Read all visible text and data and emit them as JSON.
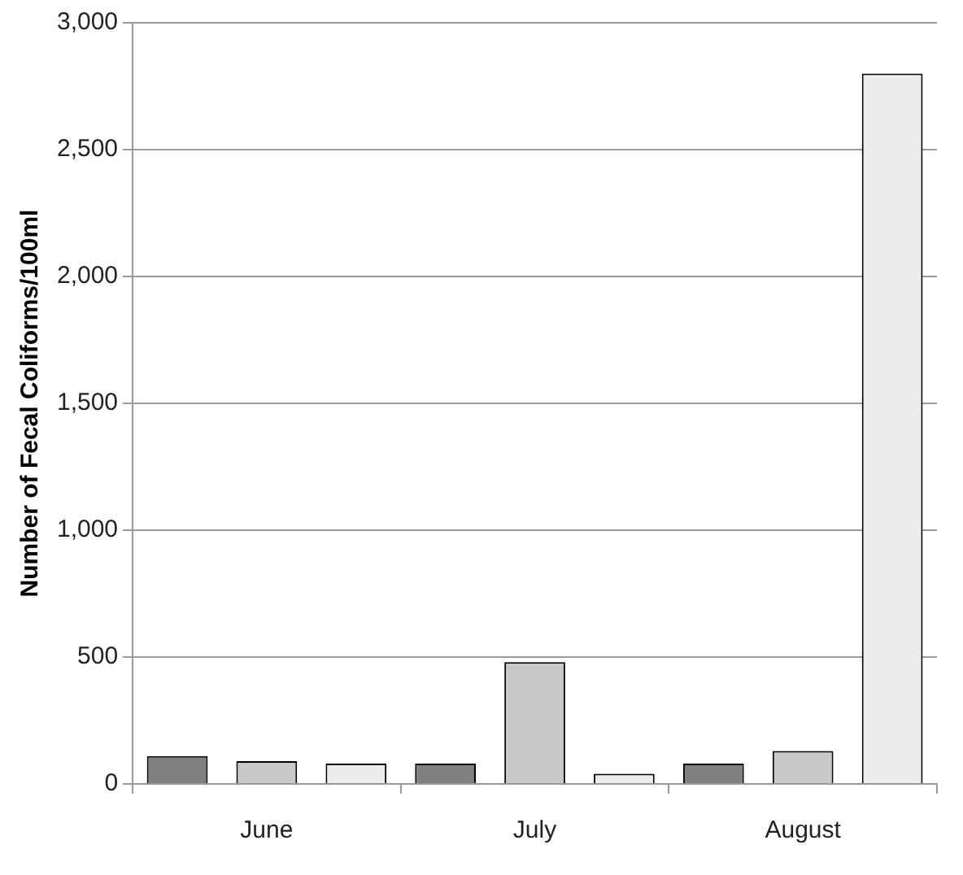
{
  "chart_data": {
    "type": "bar",
    "ylabel": "Number of Fecal Coliforms/100ml",
    "categories": [
      "June",
      "July",
      "August"
    ],
    "series": [
      {
        "color": "#808080",
        "values": [
          110,
          80,
          80
        ]
      },
      {
        "color": "#c8c8c8",
        "values": [
          90,
          480,
          130
        ]
      },
      {
        "color": "#ececec",
        "values": [
          80,
          40,
          2800
        ]
      }
    ],
    "ylim": [
      0,
      3000
    ],
    "yticks": [
      {
        "value": 0,
        "label": "0"
      },
      {
        "value": 500,
        "label": "500"
      },
      {
        "value": 1000,
        "label": "1,000"
      },
      {
        "value": 1500,
        "label": "1,500"
      },
      {
        "value": 2000,
        "label": "2,000"
      },
      {
        "value": 2500,
        "label": "2,500"
      },
      {
        "value": 3000,
        "label": "3,000"
      }
    ],
    "grid": "y",
    "legend": false
  }
}
